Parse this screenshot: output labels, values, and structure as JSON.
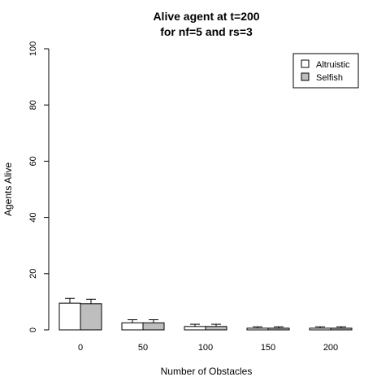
{
  "chart_data": {
    "type": "bar",
    "title": [
      "Alive agent at t=200",
      "for nf=5 and rs=3"
    ],
    "xlabel": "Number of Obstacles",
    "ylabel": "Agents Alive",
    "categories": [
      "0",
      "50",
      "100",
      "150",
      "200"
    ],
    "ylim": [
      0,
      100
    ],
    "yticks": [
      "0",
      "20",
      "40",
      "60",
      "80",
      "100"
    ],
    "legend_position": "top-right",
    "grid": false,
    "series": [
      {
        "name": "Altruistic",
        "color": "#ffffff",
        "values": [
          9.5,
          2.5,
          1.2,
          0.6,
          0.6
        ],
        "err_high": [
          11.2,
          3.6,
          2.0,
          1.1,
          1.1
        ]
      },
      {
        "name": "Selfish",
        "color": "#bebebe",
        "values": [
          9.3,
          2.5,
          1.2,
          0.6,
          0.6
        ],
        "err_high": [
          10.9,
          3.6,
          2.0,
          1.1,
          1.1
        ]
      }
    ]
  }
}
